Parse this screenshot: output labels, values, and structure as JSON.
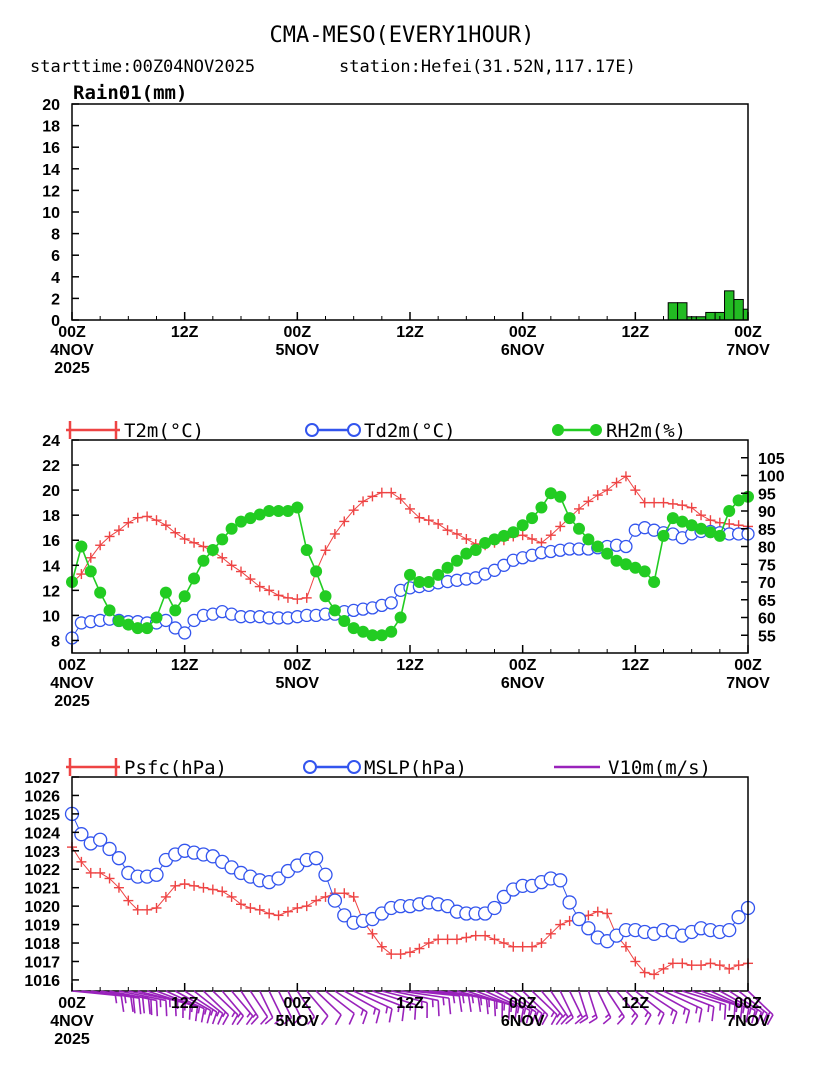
{
  "title": "CMA-MESO(EVERY1HOUR)",
  "subtitle_start": "starttime:00Z04NOV2025",
  "subtitle_station": "station:Hefei(31.52N,117.17E)",
  "colors": {
    "rain_fill": "#22bb22",
    "t2m": "#ee4444",
    "td2m": "#3355ee",
    "rh2m": "#22cc22",
    "psfc": "#ee4444",
    "mslp": "#3355ee",
    "wind": "#9922bb"
  },
  "chart_data": [
    {
      "type": "bar",
      "title": "Rain01(mm)",
      "x_start": "2025-11-04T00Z",
      "x_step_hours": 1,
      "ylim": [
        0,
        20
      ],
      "yticks": [
        0,
        2,
        4,
        6,
        8,
        10,
        12,
        14,
        16,
        18,
        20
      ],
      "xtick_labels": [
        {
          "hour": 0,
          "lines": [
            "00Z",
            "4NOV",
            "2025"
          ]
        },
        {
          "hour": 12,
          "lines": [
            "12Z"
          ]
        },
        {
          "hour": 24,
          "lines": [
            "00Z",
            "5NOV"
          ]
        },
        {
          "hour": 36,
          "lines": [
            "12Z"
          ]
        },
        {
          "hour": 48,
          "lines": [
            "00Z",
            "6NOV"
          ]
        },
        {
          "hour": 60,
          "lines": [
            "12Z"
          ]
        },
        {
          "hour": 72,
          "lines": [
            "00Z",
            "7NOV"
          ]
        }
      ],
      "rain": [
        {
          "hour": 64,
          "value": 1.6
        },
        {
          "hour": 65,
          "value": 1.6
        },
        {
          "hour": 66,
          "value": 0.3
        },
        {
          "hour": 67,
          "value": 0.3
        },
        {
          "hour": 68,
          "value": 0.7
        },
        {
          "hour": 69,
          "value": 0.7
        },
        {
          "hour": 70,
          "value": 2.7
        },
        {
          "hour": 71,
          "value": 1.9
        },
        {
          "hour": 72,
          "value": 1.0
        }
      ]
    },
    {
      "type": "line",
      "legend": [
        "T2m(°C)",
        "Td2m(°C)",
        "RH2m(%)"
      ],
      "ylim_left": [
        7,
        24
      ],
      "yticks_left": [
        8,
        10,
        12,
        14,
        16,
        18,
        20,
        22,
        24
      ],
      "ylim_right": [
        50,
        110
      ],
      "yticks_right": [
        55,
        60,
        65,
        70,
        75,
        80,
        85,
        90,
        95,
        100,
        105
      ],
      "xtick_labels": [
        {
          "hour": 0,
          "lines": [
            "00Z",
            "4NOV",
            "2025"
          ]
        },
        {
          "hour": 12,
          "lines": [
            "12Z"
          ]
        },
        {
          "hour": 24,
          "lines": [
            "00Z",
            "5NOV"
          ]
        },
        {
          "hour": 36,
          "lines": [
            "12Z"
          ]
        },
        {
          "hour": 48,
          "lines": [
            "00Z",
            "6NOV"
          ]
        },
        {
          "hour": 60,
          "lines": [
            "12Z"
          ]
        },
        {
          "hour": 72,
          "lines": [
            "00Z",
            "7NOV"
          ]
        }
      ],
      "series": [
        {
          "name": "T2m(°C)",
          "axis": "left",
          "marker": "plus",
          "values": [
            12.6,
            13.3,
            14.6,
            15.6,
            16.3,
            16.8,
            17.4,
            17.8,
            17.9,
            17.6,
            17.2,
            16.6,
            16.1,
            15.8,
            15.5,
            15.1,
            14.6,
            14.0,
            13.5,
            12.9,
            12.3,
            12.0,
            11.6,
            11.4,
            11.3,
            11.4,
            13.5,
            15.2,
            16.5,
            17.5,
            18.4,
            19.1,
            19.5,
            19.8,
            19.8,
            19.3,
            18.5,
            17.8,
            17.6,
            17.3,
            16.8,
            16.5,
            16.1,
            15.7,
            15.6,
            15.8,
            16.0,
            16.3,
            16.4,
            16.1,
            15.8,
            16.4,
            17.1,
            17.8,
            18.5,
            19.1,
            19.6,
            20.0,
            20.6,
            21.1,
            20.0,
            19.0,
            19.0,
            19.0,
            18.9,
            18.8,
            18.6,
            18.0,
            17.6,
            17.4,
            17.3,
            17.2,
            17.1
          ]
        },
        {
          "name": "Td2m(°C)",
          "axis": "left",
          "marker": "circle",
          "values": [
            8.2,
            9.4,
            9.5,
            9.6,
            9.7,
            9.6,
            9.5,
            9.5,
            9.4,
            9.4,
            9.6,
            9.0,
            8.6,
            9.6,
            10.0,
            10.1,
            10.3,
            10.1,
            9.9,
            9.9,
            9.9,
            9.8,
            9.8,
            9.8,
            9.9,
            10.0,
            10.0,
            10.1,
            10.1,
            10.3,
            10.4,
            10.5,
            10.6,
            10.8,
            11.0,
            12.0,
            12.2,
            12.3,
            12.4,
            12.6,
            12.7,
            12.8,
            12.9,
            13.0,
            13.3,
            13.6,
            14.0,
            14.4,
            14.6,
            14.8,
            15.0,
            15.1,
            15.2,
            15.3,
            15.3,
            15.3,
            15.4,
            15.5,
            15.6,
            15.5,
            16.8,
            17.0,
            16.8,
            16.6,
            16.5,
            16.2,
            16.5,
            16.7,
            16.7,
            16.6,
            16.5,
            16.5,
            16.5
          ]
        },
        {
          "name": "RH2m(%)",
          "axis": "right",
          "marker": "dot",
          "values": [
            70,
            80,
            73,
            67,
            62,
            59,
            58,
            57,
            57,
            60,
            67,
            62,
            66,
            71,
            76,
            79,
            82,
            85,
            87,
            88,
            89,
            90,
            90,
            90,
            91,
            79,
            73,
            66,
            62,
            59,
            57,
            56,
            55,
            55,
            56,
            60,
            72,
            70,
            70,
            72,
            74,
            76,
            78,
            79,
            81,
            82,
            83,
            84,
            86,
            88,
            91,
            95,
            94,
            88,
            85,
            82,
            80,
            78,
            76,
            75,
            74,
            73,
            70,
            83,
            88,
            87,
            86,
            85,
            84,
            83,
            90,
            93,
            94
          ]
        }
      ]
    },
    {
      "type": "line",
      "legend": [
        "Psfc(hPa)",
        "MSLP(hPa)",
        "V10m(m/s)"
      ],
      "ylim": [
        1015.4,
        1027
      ],
      "yticks": [
        1016,
        1017,
        1018,
        1019,
        1020,
        1021,
        1022,
        1023,
        1024,
        1025,
        1026,
        1027
      ],
      "xtick_labels": [
        {
          "hour": 0,
          "lines": [
            "00Z",
            "4NOV",
            "2025"
          ]
        },
        {
          "hour": 12,
          "lines": [
            "12Z"
          ]
        },
        {
          "hour": 24,
          "lines": [
            "00Z",
            "5NOV"
          ]
        },
        {
          "hour": 36,
          "lines": [
            "12Z"
          ]
        },
        {
          "hour": 48,
          "lines": [
            "00Z",
            "6NOV"
          ]
        },
        {
          "hour": 60,
          "lines": [
            "12Z"
          ]
        },
        {
          "hour": 72,
          "lines": [
            "00Z",
            "7NOV"
          ]
        }
      ],
      "series": [
        {
          "name": "Psfc(hPa)",
          "marker": "plus",
          "values": [
            1023.2,
            1022.4,
            1021.8,
            1021.8,
            1021.5,
            1021.0,
            1020.3,
            1019.8,
            1019.8,
            1019.9,
            1020.5,
            1021.1,
            1021.2,
            1021.1,
            1021.0,
            1020.9,
            1020.8,
            1020.5,
            1020.1,
            1019.9,
            1019.8,
            1019.6,
            1019.5,
            1019.7,
            1019.9,
            1020.0,
            1020.3,
            1020.5,
            1020.7,
            1020.7,
            1020.5,
            1019.2,
            1018.5,
            1017.8,
            1017.4,
            1017.4,
            1017.5,
            1017.7,
            1018.0,
            1018.2,
            1018.2,
            1018.2,
            1018.3,
            1018.4,
            1018.4,
            1018.2,
            1018.0,
            1017.8,
            1017.8,
            1017.8,
            1018.0,
            1018.5,
            1019.0,
            1019.2,
            1019.3,
            1019.5,
            1019.7,
            1019.6,
            1018.4,
            1017.8,
            1017.0,
            1016.4,
            1016.3,
            1016.6,
            1016.9,
            1016.9,
            1016.8,
            1016.8,
            1016.9,
            1016.8,
            1016.6,
            1016.8,
            1016.9
          ]
        },
        {
          "name": "MSLP(hPa)",
          "marker": "circle",
          "values": [
            1025.0,
            1023.9,
            1023.4,
            1023.6,
            1023.1,
            1022.6,
            1021.8,
            1021.6,
            1021.6,
            1021.7,
            1022.5,
            1022.8,
            1023.0,
            1022.9,
            1022.8,
            1022.7,
            1022.4,
            1022.1,
            1021.8,
            1021.6,
            1021.4,
            1021.3,
            1021.5,
            1021.9,
            1022.2,
            1022.5,
            1022.6,
            1021.7,
            1020.3,
            1019.5,
            1019.1,
            1019.2,
            1019.3,
            1019.6,
            1019.9,
            1020.0,
            1020.0,
            1020.1,
            1020.2,
            1020.1,
            1020.0,
            1019.7,
            1019.6,
            1019.6,
            1019.6,
            1019.9,
            1020.5,
            1020.9,
            1021.1,
            1021.1,
            1021.3,
            1021.5,
            1021.4,
            1020.2,
            1019.3,
            1018.8,
            1018.3,
            1018.1,
            1018.4,
            1018.7,
            1018.7,
            1018.6,
            1018.5,
            1018.7,
            1018.6,
            1018.4,
            1018.6,
            1018.8,
            1018.7,
            1018.6,
            1018.7,
            1019.4,
            1019.9
          ]
        }
      ],
      "wind_barbs": {
        "name": "V10m(m/s)",
        "directions_deg": [
          80,
          80,
          75,
          75,
          70,
          70,
          70,
          65,
          60,
          55,
          50,
          45,
          40,
          35,
          30,
          30,
          25,
          25,
          20,
          20,
          15,
          15,
          15,
          15,
          20,
          25,
          30,
          35,
          40,
          45,
          50,
          55,
          60,
          65,
          70,
          75,
          80,
          80,
          80,
          75,
          70,
          65,
          60,
          55,
          50,
          45,
          40,
          35,
          30,
          30,
          25,
          20,
          15,
          15,
          10,
          10,
          15,
          20,
          25,
          30,
          35,
          40,
          45,
          50,
          55,
          60,
          60,
          55,
          50,
          45,
          40,
          35,
          30
        ],
        "speeds_ms": [
          7,
          7,
          8,
          8,
          8,
          7,
          7,
          7,
          6,
          6,
          6,
          6,
          6,
          6,
          6,
          6,
          6,
          6,
          6,
          5,
          5,
          5,
          5,
          5,
          5,
          5,
          5,
          5,
          6,
          6,
          6,
          6,
          6,
          6,
          6,
          6,
          6,
          6,
          6,
          6,
          6,
          6,
          6,
          6,
          6,
          6,
          6,
          6,
          6,
          6,
          6,
          6,
          6,
          6,
          6,
          6,
          6,
          6,
          6,
          6,
          6,
          6,
          6,
          6,
          6,
          6,
          6,
          6,
          6,
          6,
          6,
          6,
          6
        ]
      }
    }
  ]
}
